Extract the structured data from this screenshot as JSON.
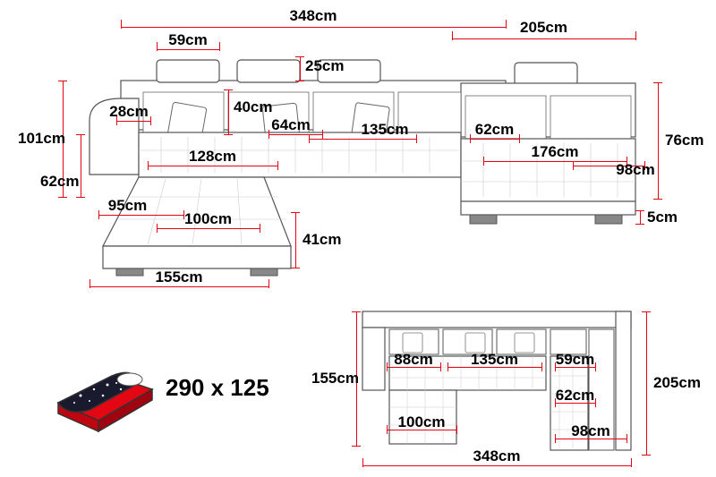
{
  "colors": {
    "dim_line": "#e30613",
    "dim_text": "#000000",
    "outline": "#4a4a4a",
    "tuft": "#bfbfbf",
    "bed_mattress": "#e30613",
    "bed_blanket": "#1a1a2e",
    "bed_stars": "#ffffff"
  },
  "fontsize": {
    "dim": 17,
    "bed": 26
  },
  "mainView": {
    "top_total_width": "348cm",
    "top_headrest_width": "59cm",
    "top_headrest_height": "25cm",
    "top_right_width": "205cm",
    "left_total_height": "101cm",
    "left_seat_height": "62cm",
    "armrest_width": "28cm",
    "back_cushion_height": "40cm",
    "seat_depth_mid": "64cm",
    "back_section_width": "135cm",
    "right_seat_depth": "62cm",
    "right_back_height": "76cm",
    "right_seat_width": "176cm",
    "right_total_width": "98cm",
    "chaise_inner_length": "128cm",
    "chaise_width": "95cm",
    "chaise_seat_length": "100cm",
    "chaise_front_height": "41cm",
    "chaise_total_depth": "155cm",
    "right_foot_clearance": "5cm"
  },
  "topView": {
    "left_arm_seat": "88cm",
    "mid_section": "135cm",
    "right_corner": "59cm",
    "right_seat": "62cm",
    "chaise_length": "100cm",
    "right_width": "98cm",
    "total_width": "348cm",
    "left_depth": "155cm",
    "right_depth": "205cm"
  },
  "bed": {
    "dimensions": "290 x 125"
  }
}
